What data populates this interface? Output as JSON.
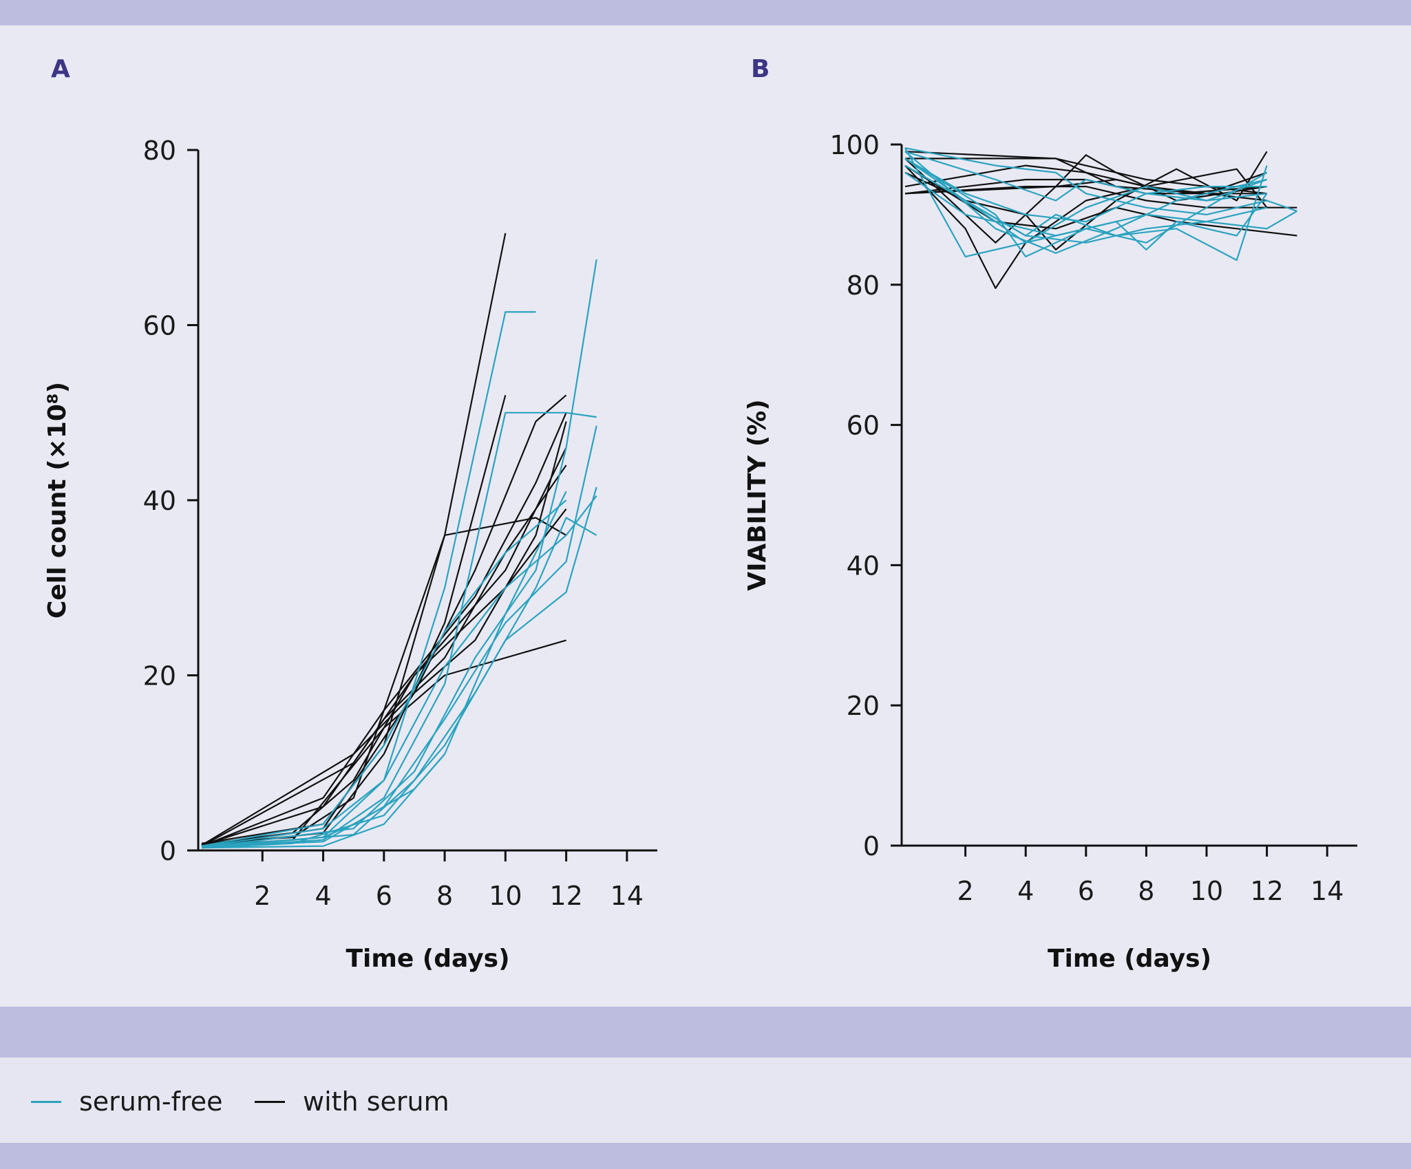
{
  "panels": {
    "a_label": "A",
    "b_label": "B"
  },
  "legend": [
    {
      "label": "serum-free",
      "color": "#2aa3bf"
    },
    {
      "label": "with serum",
      "color": "#111111"
    }
  ],
  "chart_data": [
    {
      "type": "line",
      "panel": "A",
      "xlabel": "Time (days)",
      "ylabel": "Cell count (×10⁸)",
      "xlim": [
        0,
        15
      ],
      "ylim": [
        0,
        80
      ],
      "xticks": [
        2,
        4,
        6,
        8,
        10,
        12,
        14
      ],
      "yticks": [
        0,
        20,
        40,
        60,
        80
      ],
      "grid": false,
      "series": [
        {
          "name": "with serum",
          "x": [
            0,
            3,
            5,
            8,
            10
          ],
          "y": [
            0.8,
            1.5,
            6,
            36,
            70.5
          ]
        },
        {
          "name": "with serum",
          "x": [
            0,
            4,
            6,
            8,
            10
          ],
          "y": [
            0.5,
            2,
            11,
            26,
            52
          ]
        },
        {
          "name": "with serum",
          "x": [
            0,
            5,
            7,
            9,
            11,
            12
          ],
          "y": [
            0.6,
            11,
            18,
            32,
            49,
            52
          ]
        },
        {
          "name": "with serum",
          "x": [
            0,
            4,
            6,
            9,
            11,
            12
          ],
          "y": [
            0.5,
            6,
            16,
            29,
            42,
            50
          ]
        },
        {
          "name": "with serum",
          "x": [
            0,
            3,
            5,
            7,
            10,
            12
          ],
          "y": [
            0.7,
            2,
            8,
            20,
            30,
            39
          ]
        },
        {
          "name": "with serum",
          "x": [
            0,
            5,
            7,
            10,
            12
          ],
          "y": [
            0.5,
            10,
            20,
            32,
            46
          ]
        },
        {
          "name": "with serum",
          "x": [
            0,
            4,
            6,
            8,
            10,
            12
          ],
          "y": [
            0.6,
            5,
            15,
            22,
            34,
            44
          ]
        },
        {
          "name": "with serum",
          "x": [
            0,
            3,
            6,
            8,
            12
          ],
          "y": [
            0.5,
            1.2,
            14,
            20,
            24
          ]
        },
        {
          "name": "with serum",
          "x": [
            0,
            4,
            6,
            8,
            11,
            12
          ],
          "y": [
            0.8,
            3,
            12,
            36,
            38,
            36
          ]
        },
        {
          "name": "with serum",
          "x": [
            0,
            4,
            7,
            9,
            11,
            12
          ],
          "y": [
            0.4,
            2.5,
            18,
            24,
            36,
            49
          ]
        },
        {
          "name": "serum-free",
          "x": [
            0,
            4,
            6,
            8,
            10,
            11
          ],
          "y": [
            0.4,
            1.5,
            8,
            30,
            61.5,
            61.5
          ]
        },
        {
          "name": "serum-free",
          "x": [
            0,
            4,
            6,
            8,
            10,
            12,
            13
          ],
          "y": [
            0.3,
            1.2,
            6,
            19,
            50,
            50,
            49.5
          ]
        },
        {
          "name": "serum-free",
          "x": [
            0,
            5,
            7,
            9,
            11,
            12,
            13
          ],
          "y": [
            0.3,
            2.5,
            9,
            22,
            32,
            46,
            67.5
          ]
        },
        {
          "name": "serum-free",
          "x": [
            0,
            4,
            6,
            8,
            10,
            12,
            13
          ],
          "y": [
            0.4,
            1,
            5,
            15,
            26,
            33,
            48.5
          ]
        },
        {
          "name": "serum-free",
          "x": [
            0,
            3,
            6,
            8,
            10,
            12,
            13
          ],
          "y": [
            0.3,
            0.8,
            4,
            12,
            24,
            29.5,
            41.5
          ]
        },
        {
          "name": "serum-free",
          "x": [
            0,
            5,
            7,
            9,
            11,
            12,
            13
          ],
          "y": [
            0.3,
            1.8,
            8,
            18,
            30,
            38,
            36
          ]
        },
        {
          "name": "serum-free",
          "x": [
            0,
            4,
            6,
            8,
            10,
            12
          ],
          "y": [
            0.3,
            0.5,
            3,
            11,
            27,
            41
          ]
        },
        {
          "name": "serum-free",
          "x": [
            0,
            4,
            6,
            8,
            10,
            12,
            13
          ],
          "y": [
            0.4,
            2.5,
            8,
            21,
            30,
            36,
            40.5
          ]
        },
        {
          "name": "serum-free",
          "x": [
            0,
            4,
            5,
            7,
            8
          ],
          "y": [
            0.3,
            1.5,
            3,
            7,
            11
          ]
        },
        {
          "name": "serum-free",
          "x": [
            0,
            4,
            6,
            8,
            10,
            12
          ],
          "y": [
            0.5,
            3,
            12,
            25,
            34,
            40
          ]
        }
      ]
    },
    {
      "type": "line",
      "panel": "B",
      "xlabel": "Time (days)",
      "ylabel": "VIABILITY (%)",
      "xlim": [
        0,
        15
      ],
      "ylim": [
        0,
        100
      ],
      "xticks": [
        2,
        4,
        6,
        8,
        10,
        12,
        14
      ],
      "yticks": [
        0,
        20,
        40,
        60,
        80,
        100
      ],
      "grid": false,
      "series": [
        {
          "name": "with serum",
          "x": [
            0,
            5,
            8,
            10,
            12
          ],
          "y": [
            99,
            98,
            95,
            94,
            93
          ]
        },
        {
          "name": "with serum",
          "x": [
            0,
            2,
            3,
            4,
            6,
            8,
            10,
            12
          ],
          "y": [
            97,
            88,
            79.5,
            86,
            92,
            94,
            93,
            92
          ]
        },
        {
          "name": "with serum",
          "x": [
            0,
            3,
            5,
            6,
            7,
            9,
            12
          ],
          "y": [
            98,
            86,
            94,
            98.5,
            96,
            92,
            94
          ]
        },
        {
          "name": "with serum",
          "x": [
            0,
            2,
            4,
            5,
            7,
            9,
            11,
            12
          ],
          "y": [
            96,
            92,
            90,
            85,
            92,
            96.5,
            92,
            99
          ]
        },
        {
          "name": "with serum",
          "x": [
            0,
            4,
            6,
            8,
            10,
            12
          ],
          "y": [
            93,
            95,
            95,
            93,
            93,
            93
          ]
        },
        {
          "name": "with serum",
          "x": [
            0,
            4,
            6,
            8,
            11,
            12
          ],
          "y": [
            94,
            97,
            96,
            94,
            96.5,
            91
          ]
        },
        {
          "name": "with serum",
          "x": [
            0,
            5,
            7,
            9,
            12
          ],
          "y": [
            93,
            94,
            95,
            93,
            94
          ]
        },
        {
          "name": "with serum",
          "x": [
            0,
            3,
            5,
            7,
            9,
            11,
            13
          ],
          "y": [
            97,
            89,
            88,
            91,
            89,
            88,
            87
          ]
        },
        {
          "name": "with serum",
          "x": [
            0,
            4,
            6,
            8,
            10,
            12,
            13
          ],
          "y": [
            93,
            94,
            94,
            92,
            91,
            91,
            91
          ]
        },
        {
          "name": "with serum",
          "x": [
            0,
            3,
            5,
            7,
            10,
            12
          ],
          "y": [
            98,
            98,
            98,
            94,
            93,
            96
          ]
        },
        {
          "name": "serum-free",
          "x": [
            0,
            2,
            4,
            6,
            8,
            10,
            12
          ],
          "y": [
            99.5,
            84,
            86,
            91,
            94,
            92,
            95
          ]
        },
        {
          "name": "serum-free",
          "x": [
            0,
            3,
            5,
            7,
            9,
            11,
            12
          ],
          "y": [
            99,
            88,
            84.5,
            88,
            92,
            94,
            95
          ]
        },
        {
          "name": "serum-free",
          "x": [
            0,
            4,
            6,
            8,
            10,
            12,
            13
          ],
          "y": [
            98,
            86,
            88,
            90,
            89,
            88,
            90.5
          ]
        },
        {
          "name": "serum-free",
          "x": [
            0,
            2,
            4,
            5,
            7,
            9,
            11,
            12
          ],
          "y": [
            97,
            92,
            87,
            90,
            87,
            88,
            83.5,
            97
          ]
        },
        {
          "name": "serum-free",
          "x": [
            0,
            3,
            5,
            6,
            8,
            10,
            12
          ],
          "y": [
            99,
            95,
            92,
            95,
            93,
            94,
            94
          ]
        },
        {
          "name": "serum-free",
          "x": [
            0,
            3,
            4,
            6,
            8,
            10,
            12
          ],
          "y": [
            98,
            90,
            84,
            88,
            86,
            91,
            96
          ]
        },
        {
          "name": "serum-free",
          "x": [
            0,
            2,
            5,
            7,
            8,
            9,
            11,
            12
          ],
          "y": [
            96,
            90,
            87,
            89,
            85,
            89,
            87,
            93
          ]
        },
        {
          "name": "serum-free",
          "x": [
            0,
            3,
            5,
            6,
            8,
            10,
            12,
            13
          ],
          "y": [
            99.5,
            97,
            96,
            93,
            91,
            90,
            92,
            90.5
          ]
        },
        {
          "name": "serum-free",
          "x": [
            0,
            4,
            6,
            8,
            10,
            12
          ],
          "y": [
            97,
            87,
            86,
            88,
            89,
            91
          ]
        },
        {
          "name": "serum-free",
          "x": [
            0,
            2,
            4,
            6,
            8,
            10,
            12
          ],
          "y": [
            98,
            93,
            90,
            89,
            93,
            92,
            93
          ]
        }
      ]
    }
  ]
}
